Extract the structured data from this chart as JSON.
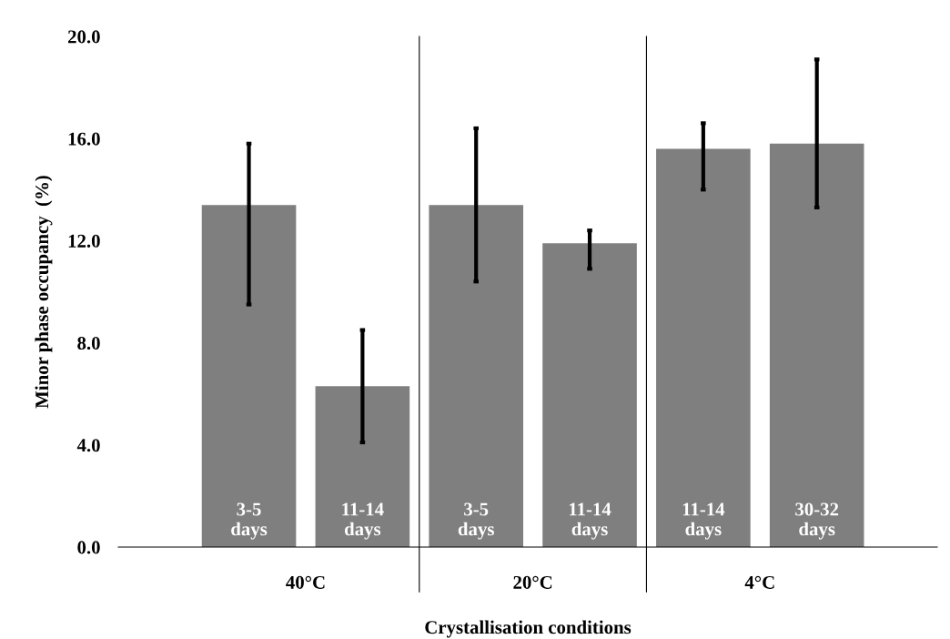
{
  "chart_data": {
    "type": "bar",
    "xlabel": "Crystallisation conditions",
    "ylabel": "Minor phase occupancy  (%)",
    "categories": [
      "3-5 days",
      "11-14 days",
      "3-5 days",
      "11-14 days",
      "11-14 days",
      "30-32 days"
    ],
    "values": [
      13.4,
      6.3,
      13.4,
      11.9,
      15.6,
      15.8
    ],
    "errors": [
      [
        9.5,
        15.8
      ],
      [
        4.1,
        8.5
      ],
      [
        10.4,
        16.4
      ],
      [
        10.9,
        12.4
      ],
      [
        14.0,
        16.6
      ],
      [
        13.3,
        19.1
      ]
    ],
    "color": "#7f7f7f",
    "ylim": [
      0,
      20
    ],
    "yticks": [
      {
        "value": 0,
        "label": "0.0"
      },
      {
        "value": 4,
        "label": "4.0"
      },
      {
        "value": 8,
        "label": "8.0"
      },
      {
        "value": 12,
        "label": "12.0"
      },
      {
        "value": 16,
        "label": "16.0"
      },
      {
        "value": 20,
        "label": "20.0"
      }
    ],
    "annotations": [
      "40°C",
      "20°C",
      "4°C"
    ],
    "grid": false,
    "legend": false
  }
}
